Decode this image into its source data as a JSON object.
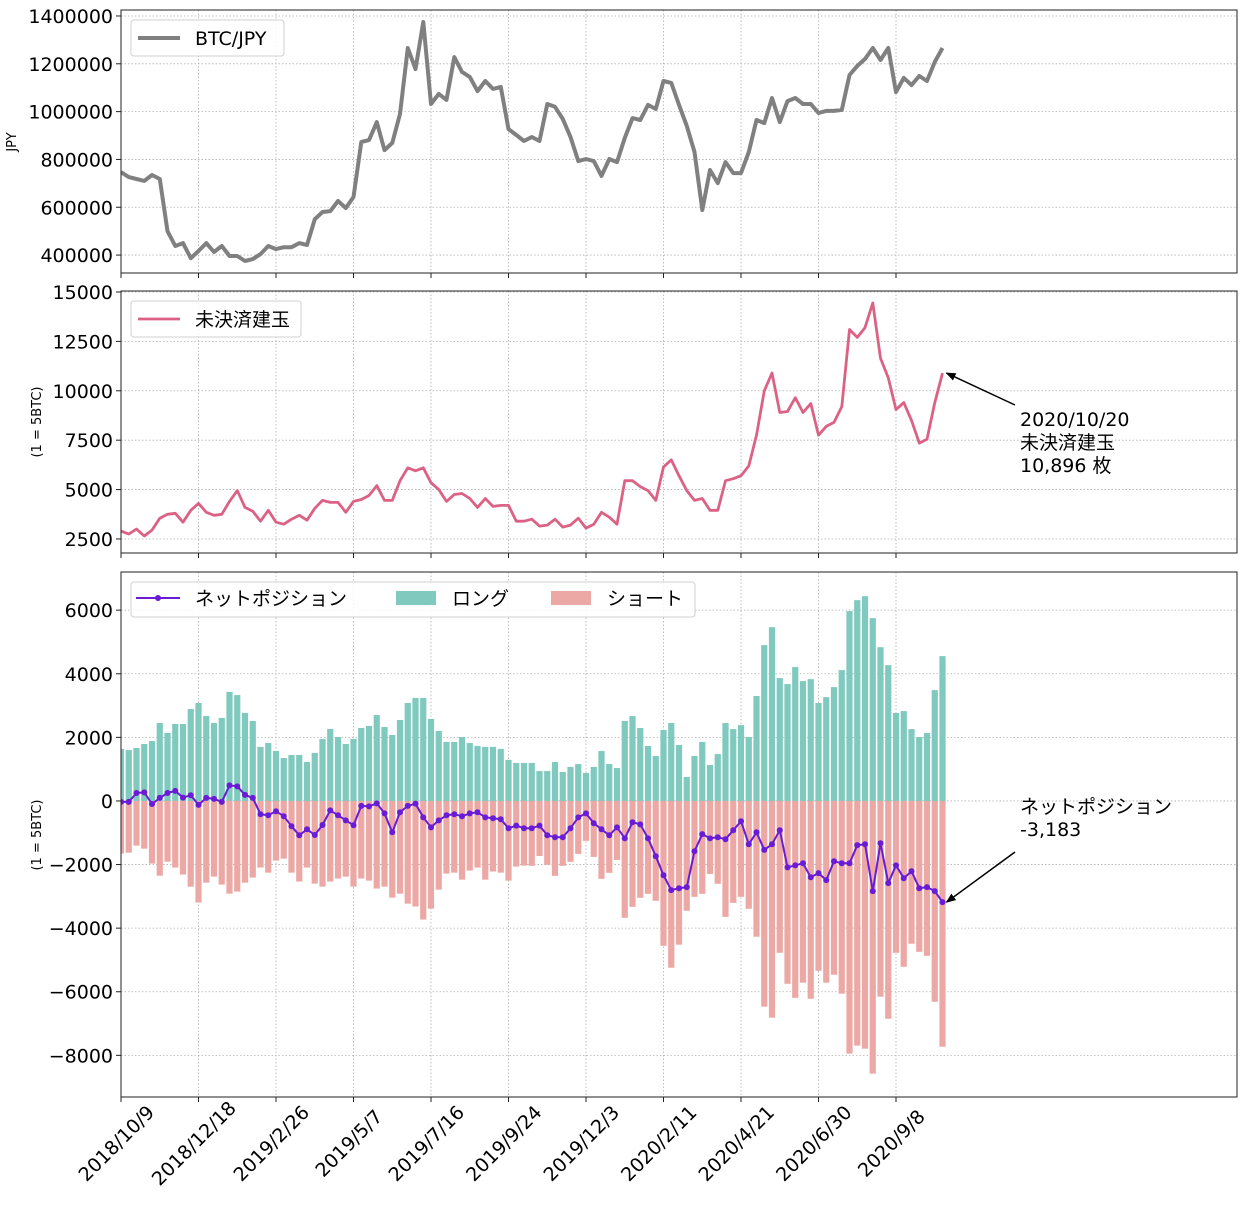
{
  "chart_data": [
    {
      "type": "line",
      "ylabel": "JPY",
      "ylim": [
        325000,
        1425000
      ],
      "yticks": [
        400000,
        600000,
        800000,
        1000000,
        1200000,
        1400000
      ],
      "grid": true,
      "legend_placement": "upper-left",
      "series": [
        {
          "name": "BTC/JPY",
          "color": "#808080",
          "values": [
            747000,
            726000,
            718000,
            710000,
            735000,
            718000,
            500000,
            438000,
            450000,
            387000,
            417000,
            450000,
            413000,
            438000,
            396000,
            396000,
            375000,
            383000,
            404000,
            438000,
            425000,
            433000,
            433000,
            450000,
            442000,
            550000,
            580000,
            584000,
            626000,
            597000,
            643000,
            873000,
            881000,
            956000,
            839000,
            869000,
            990000,
            1266000,
            1178000,
            1375000,
            1032000,
            1074000,
            1049000,
            1228000,
            1166000,
            1145000,
            1086000,
            1128000,
            1095000,
            1103000,
            927000,
            902000,
            877000,
            894000,
            877000,
            1032000,
            1020000,
            969000,
            894000,
            793000,
            802000,
            793000,
            731000,
            802000,
            789000,
            890000,
            973000,
            965000,
            1028000,
            1011000,
            1128000,
            1120000,
            1028000,
            940000,
            831000,
            588000,
            756000,
            701000,
            789000,
            743000,
            743000,
            831000,
            965000,
            952000,
            1057000,
            956000,
            1044000,
            1057000,
            1032000,
            1032000,
            994000,
            1003000,
            1003000,
            1007000,
            1153000,
            1191000,
            1220000,
            1266000,
            1216000,
            1266000,
            1082000,
            1141000,
            1111000,
            1149000,
            1128000,
            1208000,
            1266000
          ]
        }
      ]
    },
    {
      "type": "line",
      "ylabel": "(1 = 5BTC)",
      "ylim": [
        1790,
        15050
      ],
      "yticks": [
        2500,
        5000,
        7500,
        10000,
        12500,
        15000
      ],
      "grid": true,
      "legend_placement": "upper-left",
      "series": [
        {
          "name": "未決済建玉",
          "color": "#dc6285",
          "values": [
            2900,
            2750,
            3000,
            2650,
            2950,
            3550,
            3750,
            3800,
            3350,
            3950,
            4300,
            3850,
            3700,
            3750,
            4400,
            4950,
            4100,
            3900,
            3400,
            3950,
            3350,
            3250,
            3500,
            3700,
            3450,
            4050,
            4450,
            4350,
            4350,
            3850,
            4400,
            4500,
            4700,
            5200,
            4450,
            4450,
            5450,
            6100,
            5950,
            6100,
            5350,
            5000,
            4400,
            4750,
            4800,
            4550,
            4100,
            4550,
            4150,
            4200,
            4200,
            3400,
            3400,
            3500,
            3150,
            3200,
            3500,
            3100,
            3200,
            3550,
            3050,
            3250,
            3850,
            3600,
            3250,
            5450,
            5450,
            5150,
            4950,
            4450,
            6150,
            6500,
            5700,
            4950,
            4450,
            4550,
            3950,
            3950,
            5450,
            5550,
            5700,
            6200,
            7750,
            10000,
            10900,
            8900,
            8950,
            9650,
            8900,
            9350,
            7750,
            8200,
            8400,
            9200,
            13100,
            12700,
            13200,
            14450,
            11650,
            10650,
            9050,
            9400,
            8500,
            7350,
            7550,
            9400,
            10896
          ]
        }
      ],
      "annotation": {
        "lines": [
          "2020/10/20",
          "未決済建玉",
          "10,896 枚"
        ],
        "point_date": "2020/10/20",
        "point_value": 10896
      }
    },
    {
      "type": "bar+line",
      "ylabel": "(1 = 5BTC)",
      "ylim": [
        -9310,
        7200
      ],
      "yticks": [
        -8000,
        -6000,
        -4000,
        -2000,
        0,
        2000,
        4000,
        6000
      ],
      "grid": true,
      "legend_placement": "upper-left",
      "series": [
        {
          "name": "ネットポジション",
          "kind": "line-marker",
          "color": "#6a1bd6",
          "values": [
            -30,
            -30,
            250,
            270,
            -95,
            95,
            250,
            315,
            105,
            180,
            -125,
            95,
            65,
            -30,
            490,
            460,
            190,
            95,
            -420,
            -450,
            -325,
            -480,
            -795,
            -1080,
            -890,
            -1070,
            -755,
            -295,
            -450,
            -610,
            -765,
            -155,
            -170,
            -75,
            -390,
            -985,
            -355,
            -155,
            -85,
            -515,
            -830,
            -610,
            -450,
            -420,
            -480,
            -390,
            -355,
            -515,
            -545,
            -575,
            -860,
            -775,
            -860,
            -860,
            -775,
            -1080,
            -1140,
            -1140,
            -860,
            -515,
            -390,
            -700,
            -890,
            -1080,
            -830,
            -1175,
            -670,
            -735,
            -1175,
            -1740,
            -2335,
            -2805,
            -2745,
            -2710,
            -1580,
            -1045,
            -1175,
            -1140,
            -1205,
            -920,
            -640,
            -1360,
            -985,
            -1540,
            -1360,
            -920,
            -2090,
            -2025,
            -1960,
            -2400,
            -2270,
            -2490,
            -1895,
            -1960,
            -1960,
            -1390,
            -1360,
            -2835,
            -1330,
            -2585,
            -2025,
            -2430,
            -2210,
            -2745,
            -2710,
            -2835,
            -3183
          ]
        },
        {
          "name": "ロング",
          "kind": "bar",
          "color": "#7fc9bf",
          "values": [
            1635,
            1600,
            1665,
            1790,
            1885,
            2450,
            2140,
            2420,
            2420,
            2890,
            3080,
            2670,
            2450,
            2610,
            3430,
            3330,
            2770,
            2515,
            1700,
            1820,
            1570,
            1350,
            1445,
            1445,
            1225,
            1510,
            1950,
            2265,
            2010,
            1790,
            1950,
            2295,
            2360,
            2700,
            2325,
            2075,
            2545,
            3080,
            3240,
            3240,
            2580,
            2200,
            1855,
            1855,
            2010,
            1820,
            1730,
            1700,
            1700,
            1635,
            1290,
            1195,
            1195,
            1195,
            940,
            940,
            1225,
            910,
            1070,
            1160,
            880,
            1070,
            1570,
            1160,
            1035,
            2515,
            2670,
            2295,
            1730,
            1415,
            2230,
            2450,
            1760,
            755,
            1415,
            1855,
            1130,
            1475,
            2450,
            2260,
            2385,
            2010,
            3300,
            4900,
            5465,
            3865,
            3675,
            4210,
            3770,
            3830,
            3080,
            3265,
            3580,
            4115,
            5970,
            6315,
            6440,
            5750,
            4835,
            4270,
            2765,
            2825,
            2260,
            2010,
            2135,
            3485,
            4555
          ]
        },
        {
          "name": "ショート",
          "kind": "bar",
          "color": "#eba8a4",
          "values": [
            -1655,
            -1625,
            -1405,
            -1500,
            -1970,
            -2350,
            -1910,
            -2095,
            -2315,
            -2695,
            -3195,
            -2570,
            -2380,
            -2630,
            -2915,
            -2850,
            -2570,
            -2410,
            -2095,
            -2255,
            -1875,
            -1815,
            -2255,
            -2535,
            -2095,
            -2600,
            -2695,
            -2535,
            -2440,
            -2380,
            -2695,
            -2440,
            -2505,
            -2755,
            -2695,
            -3040,
            -2915,
            -3230,
            -3320,
            -3730,
            -3385,
            -2790,
            -2285,
            -2255,
            -2475,
            -2190,
            -2095,
            -2475,
            -2220,
            -2255,
            -2505,
            -2065,
            -2035,
            -2040,
            -1730,
            -2010,
            -2355,
            -2040,
            -1915,
            -1665,
            -1255,
            -1760,
            -2450,
            -2260,
            -1855,
            -3675,
            -3330,
            -3045,
            -2920,
            -3140,
            -4555,
            -5245,
            -4520,
            -3455,
            -3015,
            -2920,
            -2295,
            -2605,
            -3645,
            -3205,
            -3015,
            -3390,
            -4270,
            -6470,
            -6815,
            -4775,
            -5750,
            -6190,
            -5715,
            -6220,
            -5340,
            -5715,
            -5465,
            -6060,
            -7945,
            -7695,
            -7790,
            -8575,
            -6155,
            -6850,
            -4775,
            -5215,
            -4490,
            -4745,
            -4870,
            -6315,
            -7730
          ]
        }
      ],
      "annotation": {
        "lines": [
          "ネットポジション",
          "-3,183"
        ],
        "point_date": "2020/10/20",
        "point_value": -3183
      }
    }
  ],
  "x": {
    "xlim": [
      "2018/10/9",
      "2021/7/13"
    ],
    "tick_labels": [
      "2018/10/9",
      "2018/12/18",
      "2019/2/26",
      "2019/5/7",
      "2019/7/16",
      "2019/9/24",
      "2019/12/3",
      "2020/2/11",
      "2020/4/21",
      "2020/6/30",
      "2020/9/8"
    ],
    "dates": [
      "2018/10/9",
      "2018/10/16",
      "2018/10/23",
      "2018/10/30",
      "2018/11/6",
      "2018/11/13",
      "2018/11/20",
      "2018/11/27",
      "2018/12/4",
      "2018/12/11",
      "2018/12/18",
      "2018/12/25",
      "2019/1/1",
      "2019/1/8",
      "2019/1/15",
      "2019/1/22",
      "2019/1/29",
      "2019/2/5",
      "2019/2/12",
      "2019/2/19",
      "2019/2/26",
      "2019/3/5",
      "2019/3/12",
      "2019/3/19",
      "2019/3/26",
      "2019/4/2",
      "2019/4/9",
      "2019/4/16",
      "2019/4/23",
      "2019/4/30",
      "2019/5/7",
      "2019/5/14",
      "2019/5/21",
      "2019/5/28",
      "2019/6/4",
      "2019/6/11",
      "2019/6/18",
      "2019/6/25",
      "2019/7/2",
      "2019/7/9",
      "2019/7/16",
      "2019/7/23",
      "2019/7/30",
      "2019/8/6",
      "2019/8/13",
      "2019/8/20",
      "2019/8/27",
      "2019/9/3",
      "2019/9/10",
      "2019/9/17",
      "2019/9/24",
      "2019/10/1",
      "2019/10/8",
      "2019/10/15",
      "2019/10/22",
      "2019/10/29",
      "2019/11/5",
      "2019/11/12",
      "2019/11/19",
      "2019/11/26",
      "2019/12/3",
      "2019/12/10",
      "2019/12/17",
      "2019/12/24",
      "2019/12/31",
      "2020/1/7",
      "2020/1/14",
      "2020/1/21",
      "2020/1/28",
      "2020/2/4",
      "2020/2/11",
      "2020/2/18",
      "2020/2/25",
      "2020/3/3",
      "2020/3/10",
      "2020/3/17",
      "2020/3/24",
      "2020/3/31",
      "2020/4/7",
      "2020/4/14",
      "2020/4/21",
      "2020/4/28",
      "2020/5/5",
      "2020/5/12",
      "2020/5/19",
      "2020/5/26",
      "2020/6/2",
      "2020/6/9",
      "2020/6/16",
      "2020/6/23",
      "2020/6/30",
      "2020/7/7",
      "2020/7/14",
      "2020/7/21",
      "2020/7/28",
      "2020/8/4",
      "2020/8/11",
      "2020/8/18",
      "2020/8/25",
      "2020/9/1",
      "2020/9/8",
      "2020/9/15",
      "2020/9/22",
      "2020/9/29",
      "2020/10/6",
      "2020/10/13",
      "2020/10/20"
    ]
  }
}
